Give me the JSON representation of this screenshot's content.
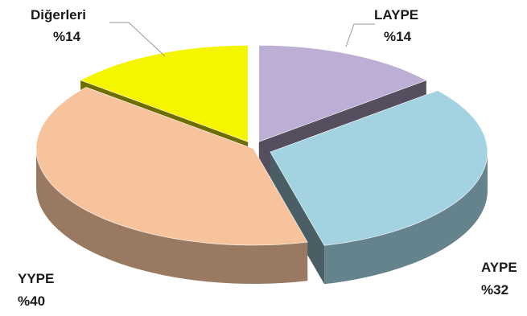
{
  "chart_data": {
    "type": "pie",
    "title": "",
    "slices": [
      {
        "label": "LAYPE",
        "value": 14,
        "text": "%14",
        "color": "#bcaed4"
      },
      {
        "label": "AYPE",
        "value": 32,
        "text": "%32",
        "color": "#a3d3e1"
      },
      {
        "label": "YYPE",
        "value": 40,
        "text": "%40",
        "color": "#f6c39c"
      },
      {
        "label": "Diğerleri",
        "value": 14,
        "text": "%14",
        "color": "#f5f500"
      }
    ]
  }
}
